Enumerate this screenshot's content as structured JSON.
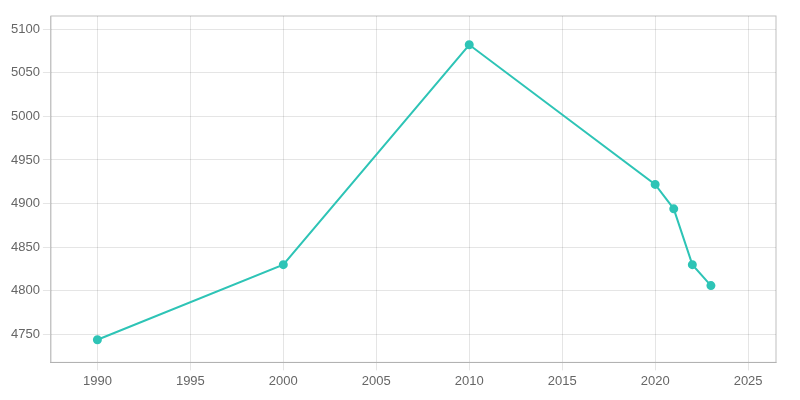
{
  "chart_data": {
    "type": "line",
    "x": [
      1990,
      2000,
      2010,
      2020,
      2021,
      2022,
      2023
    ],
    "values": [
      4744,
      4830,
      5082,
      4922,
      4894,
      4830,
      4806
    ],
    "color": "#2EC4B6",
    "marker": "o",
    "xlim": [
      1987.5,
      2026.5
    ],
    "ylim": [
      4718,
      5115
    ],
    "xticks": [
      1990,
      1995,
      2000,
      2005,
      2010,
      2015,
      2020,
      2025
    ],
    "yticks": [
      4750,
      4800,
      4850,
      4900,
      4950,
      5000,
      5050,
      5100
    ],
    "grid": true
  }
}
